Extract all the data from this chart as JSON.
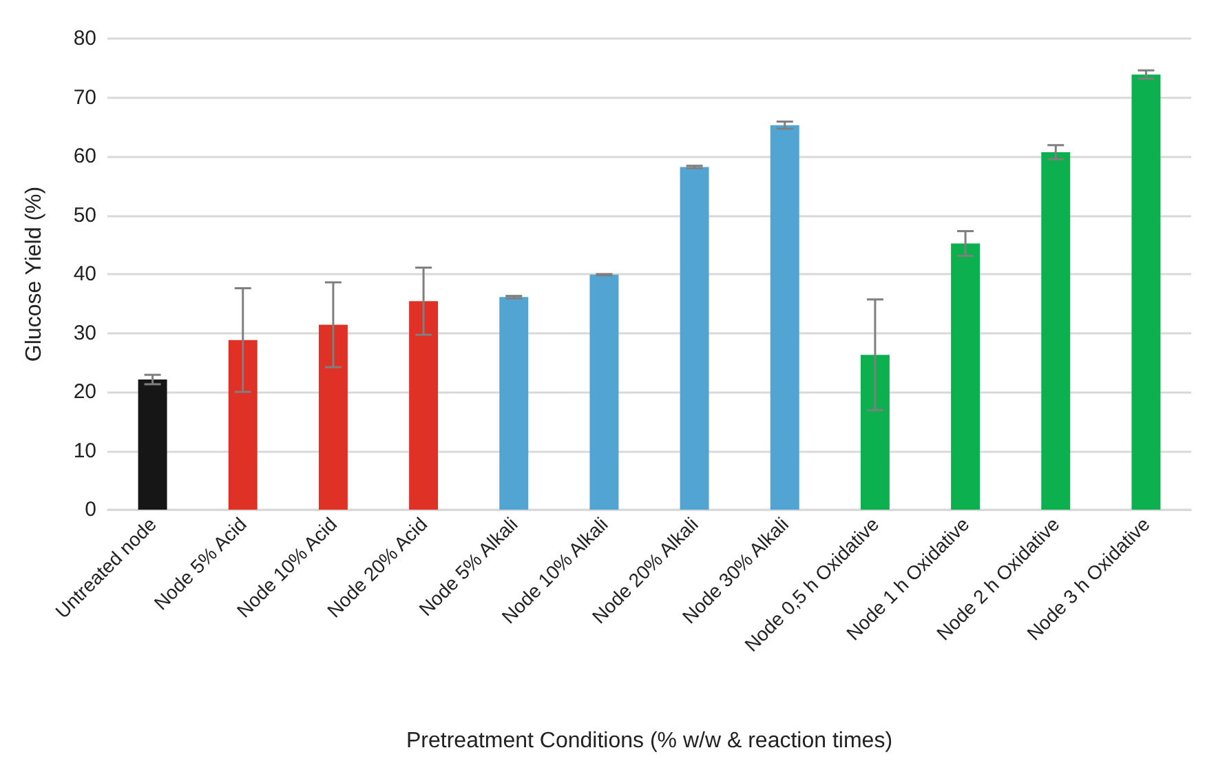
{
  "chart_data": {
    "type": "bar",
    "xlabel": "Pretreatment Conditions (% w/w & reaction times)",
    "ylabel": "Glucose Yield (%)",
    "categories": [
      "Untreated node",
      "Node 5% Acid",
      "Node 10% Acid",
      "Node 20% Acid",
      "Node 5% Alkali",
      "Node 10% Alkali",
      "Node 20% Alkali",
      "Node 30% Alkali",
      "Node 0,5 h Oxidative",
      "Node 1 h Oxidative",
      "Node 2 h Oxidative",
      "Node 3 h Oxidative"
    ],
    "values": [
      22.1,
      28.8,
      31.4,
      35.4,
      36.1,
      39.9,
      58.2,
      65.3,
      26.3,
      45.2,
      60.7,
      73.9
    ],
    "errors": [
      0.8,
      8.8,
      7.2,
      5.7,
      0.2,
      0.1,
      0.2,
      0.6,
      9.4,
      2.1,
      1.2,
      0.7
    ],
    "colors": [
      "#161616",
      "#e03127",
      "#e03127",
      "#e03127",
      "#52a5d3",
      "#52a5d3",
      "#52a5d3",
      "#52a5d3",
      "#0db04f",
      "#0db04f",
      "#0db04f",
      "#0db04f"
    ],
    "ylim": [
      0,
      80
    ],
    "yticks": [
      0,
      10,
      20,
      30,
      40,
      50,
      60,
      70,
      80
    ],
    "grid": "y"
  }
}
